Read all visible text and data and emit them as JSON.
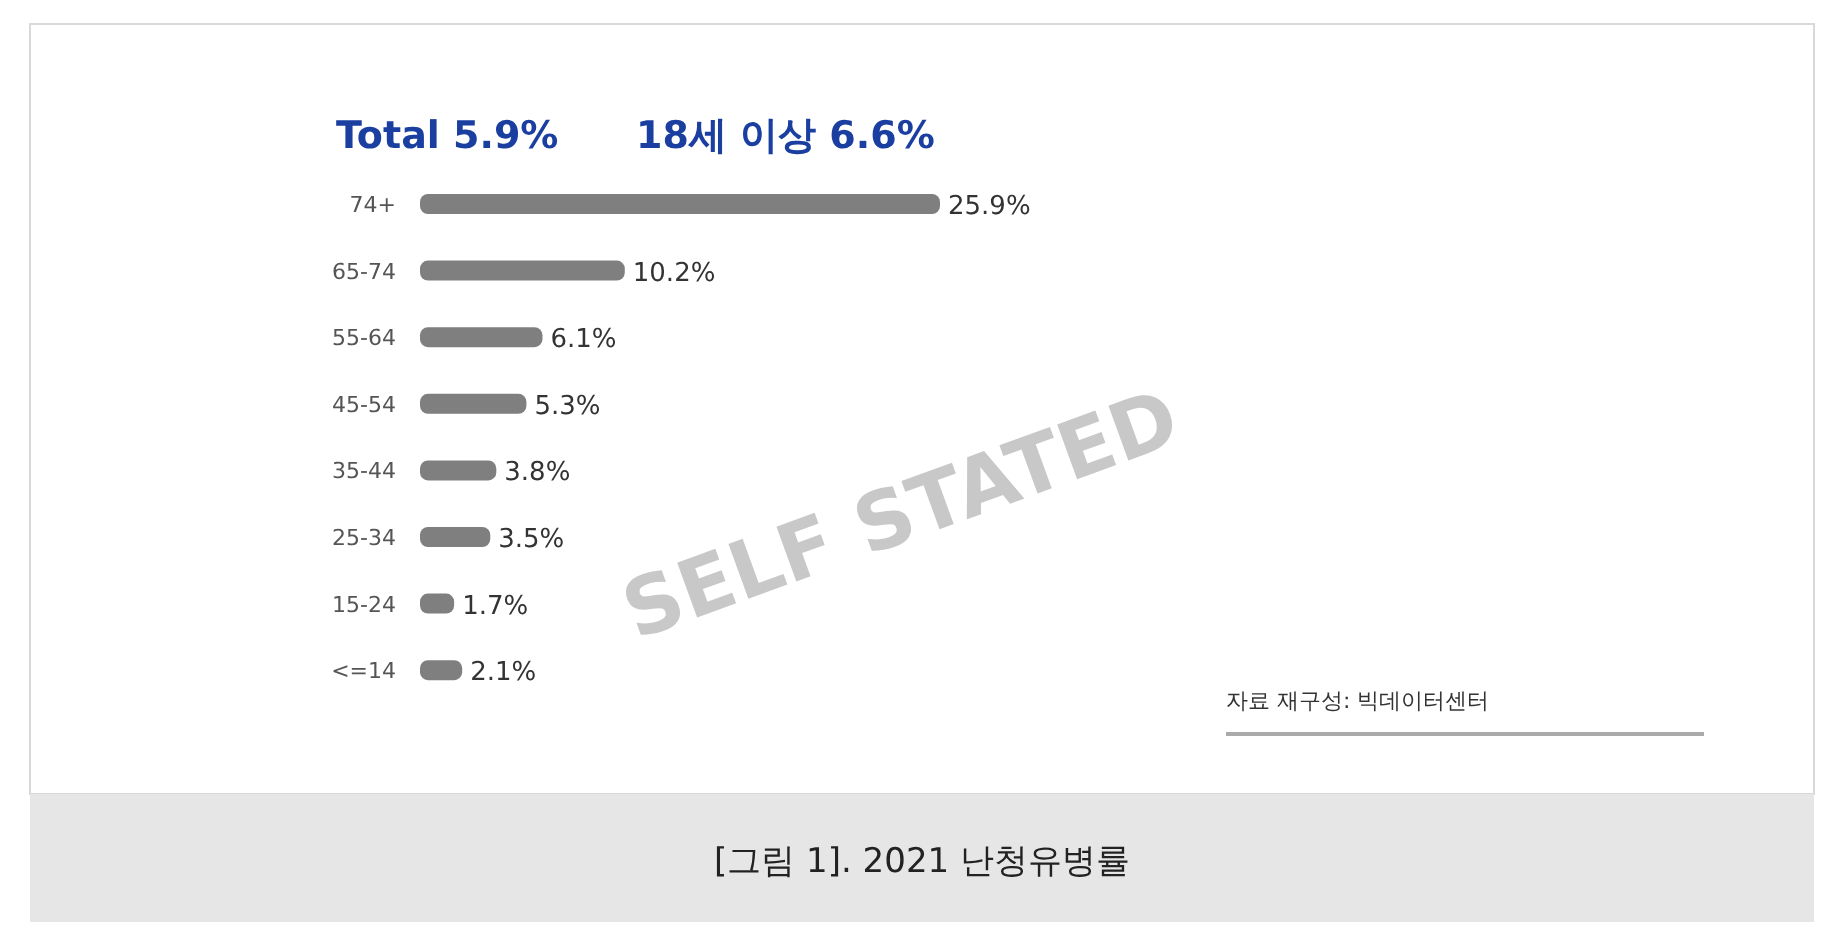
{
  "chart_data": {
    "type": "bar",
    "orientation": "horizontal",
    "title": "[그림 1]. 2021 난청유병률",
    "categories": [
      "74+",
      "65-74",
      "55-64",
      "45-54",
      "35-44",
      "25-34",
      "15-24",
      "<=14"
    ],
    "values": [
      25.9,
      10.2,
      6.1,
      5.3,
      3.8,
      3.5,
      1.7,
      2.1
    ],
    "color": "#7f7f7f",
    "value_labels": [
      "25.9%",
      "10.2%",
      "6.1%",
      "5.3%",
      "3.8%",
      "3.5%",
      "1.7%",
      "2.1%"
    ],
    "annotations": [
      "Total 5.9%",
      "18세 이상 6.6%",
      "SELF STATED",
      "자료 재구성: 빅데이터센터"
    ]
  }
}
